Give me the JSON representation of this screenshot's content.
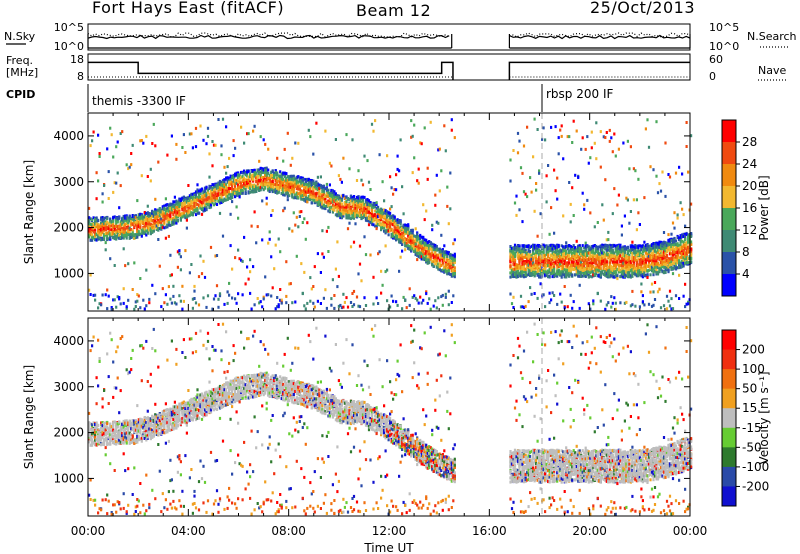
{
  "header": {
    "station": "Fort Hays East (fitACF)",
    "beam": "Beam 12",
    "date": "25/Oct/2013"
  },
  "noise_panel": {
    "left_label": "N.Sky",
    "right_label": "N.Search",
    "left_ticks": [
      "10^5",
      "10^0"
    ],
    "right_ticks": [
      "10^5",
      "10^0"
    ]
  },
  "freq_panel": {
    "left_label_line1": "Freq.",
    "left_label_line2": "[MHz]",
    "right_label": "Nave",
    "left_ticks": [
      "18",
      "8"
    ],
    "right_ticks": [
      "60",
      "0"
    ]
  },
  "cpid_panel": {
    "label": "CPID",
    "modes": [
      "themis -3300 IF",
      "rbsp 200 IF"
    ]
  },
  "colors": {
    "power_scale": [
      "#0000ff",
      "#2a52a8",
      "#3f8a74",
      "#4aa85a",
      "#f2b830",
      "#f08a10",
      "#f04a10",
      "#ff0000"
    ],
    "velocity_scale": [
      "#1010d0",
      "#2a4aa8",
      "#2e7a2e",
      "#66cc33",
      "#bebebe",
      "#f0a020",
      "#f07010",
      "#f03010",
      "#ff0000"
    ],
    "ground_scatter": "#bebebe"
  },
  "chart_data": [
    {
      "type": "heatmap",
      "name": "Power panel",
      "ylabel": "Slant Range [km]",
      "y_ticks": [
        "1000",
        "2000",
        "3000",
        "4000"
      ],
      "x_ticks": [
        "00:00",
        "04:00",
        "08:00",
        "12:00",
        "16:00",
        "20:00",
        "00:00"
      ],
      "xlim_hours": [
        0,
        24
      ],
      "ylim_km": [
        180,
        4500
      ],
      "colorbar": {
        "label": "Power [dB]",
        "ticks": [
          "28",
          "24",
          "20",
          "16",
          "12",
          "8",
          "4"
        ],
        "range": [
          0,
          30
        ]
      },
      "data_gap_hours": [
        14.6,
        16.8
      ],
      "scatter_band_center_km": [
        [
          0,
          2000
        ],
        [
          1.8,
          2050
        ],
        [
          2.5,
          2150
        ],
        [
          4,
          2500
        ],
        [
          6,
          3000
        ],
        [
          7,
          3100
        ],
        [
          9,
          2800
        ],
        [
          10,
          2500
        ],
        [
          11,
          2450
        ],
        [
          12,
          2100
        ],
        [
          13.5,
          1500
        ],
        [
          14.5,
          1200
        ],
        [
          16.8,
          1300
        ],
        [
          18,
          1300
        ],
        [
          22,
          1300
        ],
        [
          23,
          1400
        ],
        [
          24,
          1600
        ]
      ]
    },
    {
      "type": "heatmap",
      "name": "Velocity panel",
      "ylabel": "Slant Range [km]",
      "xlabel": "Time UT",
      "y_ticks": [
        "1000",
        "2000",
        "3000",
        "4000"
      ],
      "x_ticks": [
        "00:00",
        "04:00",
        "08:00",
        "12:00",
        "16:00",
        "20:00",
        "00:00"
      ],
      "xlim_hours": [
        0,
        24
      ],
      "ylim_km": [
        180,
        4500
      ],
      "colorbar": {
        "label": "Velocity [m s⁻¹]",
        "ticks": [
          "200",
          "100",
          "50",
          "15",
          "-15",
          "-50",
          "-100",
          "-200"
        ],
        "range": [
          -250,
          250
        ]
      },
      "data_gap_hours": [
        14.6,
        16.8
      ]
    }
  ]
}
